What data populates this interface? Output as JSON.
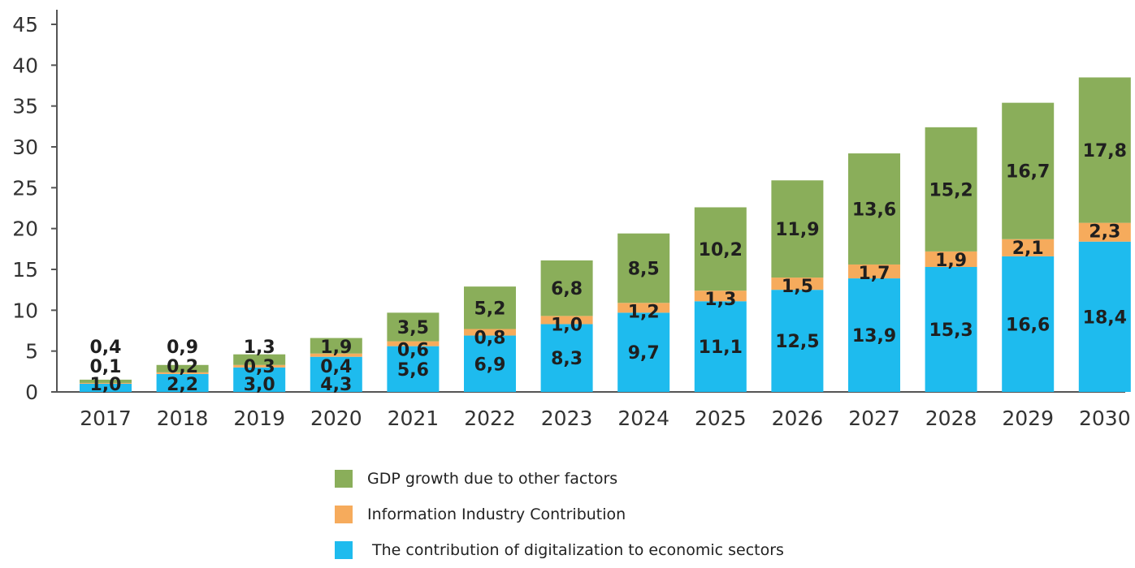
{
  "chart_data": {
    "type": "bar",
    "stacked": true,
    "categories": [
      "2017",
      "2018",
      "2019",
      "2020",
      "2021",
      "2022",
      "2023",
      "2024",
      "2025",
      "2026",
      "2027",
      "2028",
      "2029",
      "2030"
    ],
    "series": [
      {
        "name": "The contribution of digitalization to economic sectors",
        "color": "#1ebbee",
        "values": [
          1.0,
          2.2,
          3.0,
          4.3,
          5.6,
          6.9,
          8.3,
          9.7,
          11.1,
          12.5,
          13.9,
          15.3,
          16.6,
          18.4
        ],
        "labels": [
          "1,0",
          "2,2",
          "3,0",
          "4,3",
          "5,6",
          "6,9",
          "8,3",
          "9,7",
          "11,1",
          "12,5",
          "13,9",
          "15,3",
          "16,6",
          "18,4"
        ]
      },
      {
        "name": "Information Industry Contribution",
        "color": "#f6ab5c",
        "values": [
          0.1,
          0.2,
          0.3,
          0.4,
          0.6,
          0.8,
          1.0,
          1.2,
          1.3,
          1.5,
          1.7,
          1.9,
          2.1,
          2.3
        ],
        "labels": [
          "0,1",
          "0,2",
          "0,3",
          "0,4",
          "0,6",
          "0,8",
          "1,0",
          "1,2",
          "1,3",
          "1,5",
          "1,7",
          "1,9",
          "2,1",
          "2,3"
        ]
      },
      {
        "name": "GDP growth due to other factors",
        "color": "#8aae5a",
        "values": [
          0.4,
          0.9,
          1.3,
          1.9,
          3.5,
          5.2,
          6.8,
          8.5,
          10.2,
          11.9,
          13.6,
          15.2,
          16.7,
          17.8
        ],
        "labels": [
          "0,4",
          "0,9",
          "1,3",
          "1,9",
          "3,5",
          "5,2",
          "6,8",
          "8,5",
          "10,2",
          "11,9",
          "13,6",
          "15,2",
          "16,7",
          "17,8"
        ]
      }
    ],
    "ylim": [
      0,
      45
    ],
    "yticks": [
      "0",
      "5",
      "10",
      "15",
      "20",
      "25",
      "30",
      "35",
      "40",
      "45"
    ],
    "grid": false,
    "legend_position": "bottom",
    "legend_order": [
      "GDP growth due to other factors",
      "Information Industry Contribution",
      "The contribution of digitalization to economic sectors"
    ]
  }
}
